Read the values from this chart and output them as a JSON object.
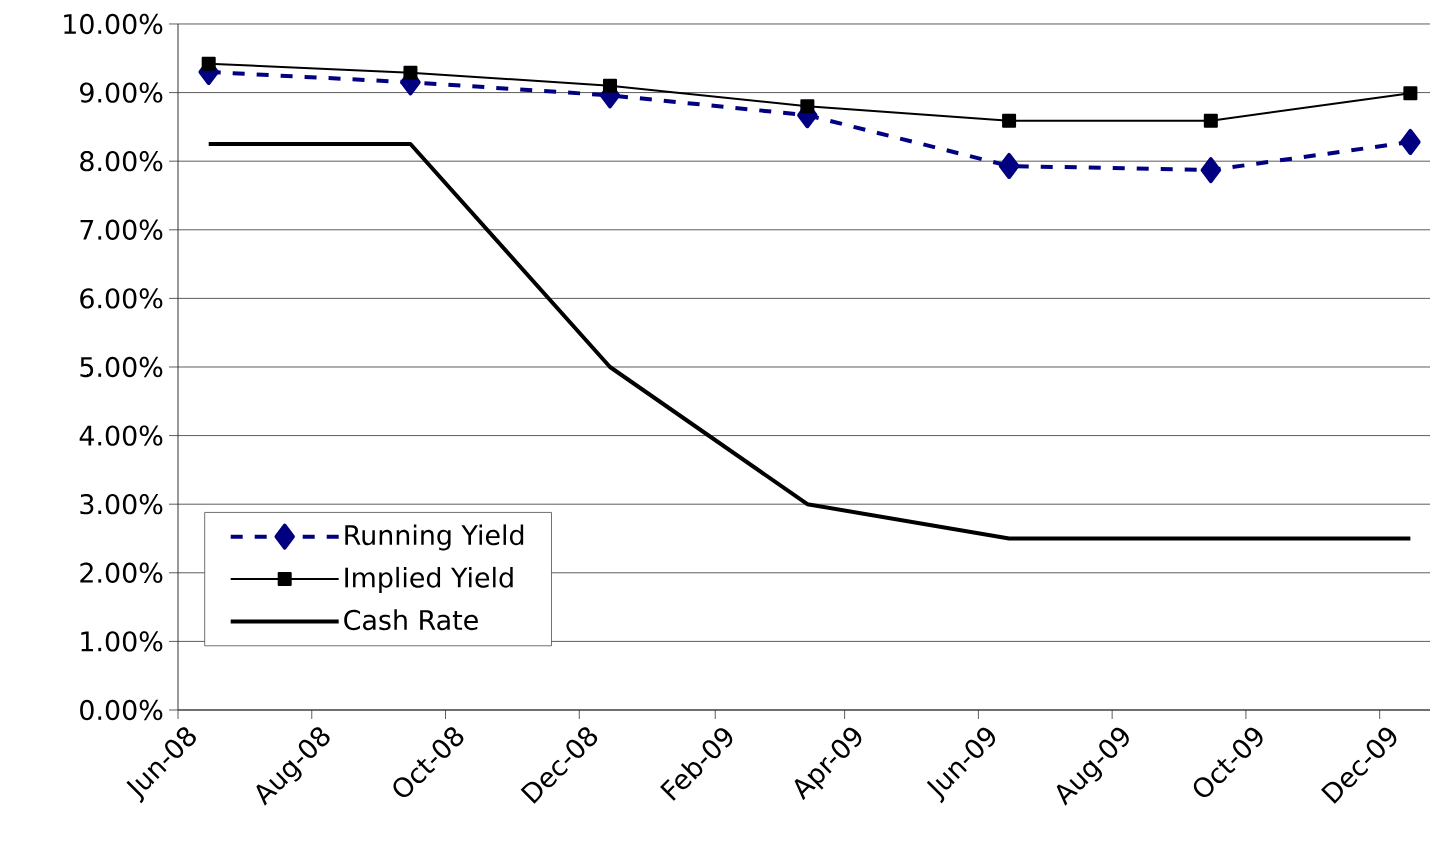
{
  "chart_data": {
    "type": "line",
    "x": [
      "2008-06-15",
      "2008-09-15",
      "2008-12-15",
      "2009-03-15",
      "2009-06-15",
      "2009-09-15",
      "2009-12-15"
    ],
    "series": [
      {
        "name": "Running Yield",
        "color": "#000080",
        "marker": "diamond",
        "line_style": "dashed",
        "values": [
          9.3,
          9.15,
          8.96,
          8.67,
          7.93,
          7.87,
          8.28
        ]
      },
      {
        "name": "Implied Yield",
        "color": "#000000",
        "marker": "square",
        "line_style": "solid",
        "values": [
          9.42,
          9.29,
          9.1,
          8.8,
          8.59,
          8.59,
          8.99
        ]
      },
      {
        "name": "Cash Rate",
        "color": "#000000",
        "marker": "none",
        "line_style": "solid",
        "values": [
          8.25,
          8.25,
          5.0,
          3.0,
          2.5,
          2.5,
          2.5
        ]
      }
    ],
    "xlim": [
      "2008-06-01",
      "2009-12-24"
    ],
    "xticks": [
      {
        "value": "2008-06-01",
        "label": "Jun-08"
      },
      {
        "value": "2008-08-01",
        "label": "Aug-08"
      },
      {
        "value": "2008-10-01",
        "label": "Oct-08"
      },
      {
        "value": "2008-12-01",
        "label": "Dec-08"
      },
      {
        "value": "2009-02-01",
        "label": "Feb-09"
      },
      {
        "value": "2009-04-01",
        "label": "Apr-09"
      },
      {
        "value": "2009-06-01",
        "label": "Jun-09"
      },
      {
        "value": "2009-08-01",
        "label": "Aug-09"
      },
      {
        "value": "2009-10-01",
        "label": "Oct-09"
      },
      {
        "value": "2009-12-01",
        "label": "Dec-09"
      }
    ],
    "ylim": [
      0,
      10
    ],
    "yticks": [
      {
        "value": 0,
        "label": "0.00%"
      },
      {
        "value": 1,
        "label": "1.00%"
      },
      {
        "value": 2,
        "label": "2.00%"
      },
      {
        "value": 3,
        "label": "3.00%"
      },
      {
        "value": 4,
        "label": "4.00%"
      },
      {
        "value": 5,
        "label": "5.00%"
      },
      {
        "value": 6,
        "label": "6.00%"
      },
      {
        "value": 7,
        "label": "7.00%"
      },
      {
        "value": 8,
        "label": "8.00%"
      },
      {
        "value": 9,
        "label": "9.00%"
      },
      {
        "value": 10,
        "label": "10.00%"
      }
    ],
    "grid": "y",
    "legend": "bottom left"
  }
}
